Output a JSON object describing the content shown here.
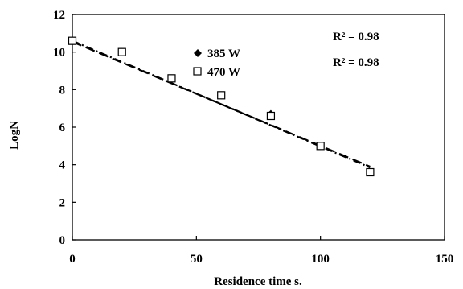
{
  "chart_data": {
    "type": "scatter",
    "xlabel": "Residence time s.",
    "ylabel": "LogN",
    "xlim": [
      0,
      150
    ],
    "ylim": [
      0,
      12
    ],
    "x_ticks": [
      "0",
      "50",
      "100",
      "150"
    ],
    "y_ticks": [
      "0",
      "2",
      "4",
      "6",
      "8",
      "10",
      "12"
    ],
    "grid": false,
    "legend_position": "top-center",
    "series": [
      {
        "name": "385 W",
        "marker": "filled-diamond",
        "x": [
          0,
          20,
          40,
          60,
          80,
          100,
          120
        ],
        "y": [
          10.6,
          10.0,
          8.6,
          7.7,
          6.7,
          5.0,
          3.6
        ]
      },
      {
        "name": "470 W",
        "marker": "open-square",
        "x": [
          0,
          20,
          40,
          60,
          80,
          100,
          120
        ],
        "y": [
          10.6,
          10.0,
          8.6,
          7.7,
          6.6,
          5.0,
          3.6
        ]
      }
    ],
    "trendlines": [
      {
        "style": "long-dash",
        "x": [
          0,
          120
        ],
        "y": [
          10.55,
          3.9
        ]
      },
      {
        "style": "dash-dot",
        "x": [
          0,
          120
        ],
        "y": [
          10.6,
          3.85
        ]
      }
    ],
    "annotations": [
      "R² = 0.98",
      "R² = 0.98"
    ]
  }
}
